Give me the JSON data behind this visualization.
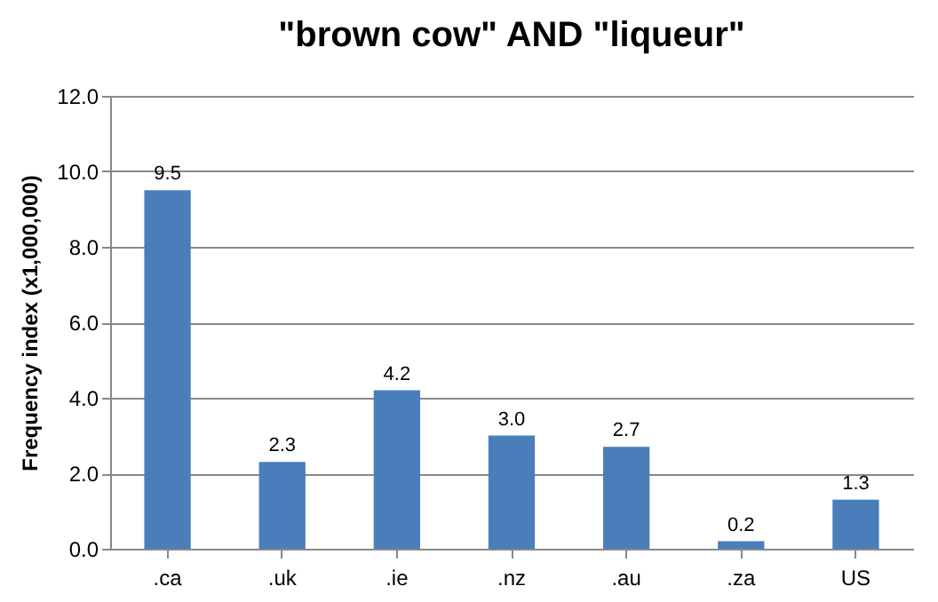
{
  "chart_data": {
    "type": "bar",
    "title": "\"brown cow\" AND \"liqueur\"",
    "ylabel": "Frequency index (x1,000,000)",
    "categories": [
      ".ca",
      ".uk",
      ".ie",
      ".nz",
      ".au",
      ".za",
      "US"
    ],
    "values": [
      9.5,
      2.3,
      4.2,
      3.0,
      2.7,
      0.2,
      1.3
    ],
    "value_labels": [
      "9.5",
      "2.3",
      "4.2",
      "3.0",
      "2.7",
      "0.2",
      "1.3"
    ],
    "color": "#4a7ebb",
    "ylim": [
      0,
      12
    ],
    "yticks": [
      {
        "value": 0,
        "label": "0.0"
      },
      {
        "value": 2,
        "label": "2.0"
      },
      {
        "value": 4,
        "label": "4.0"
      },
      {
        "value": 6,
        "label": "6.0"
      },
      {
        "value": 8,
        "label": "8.0"
      },
      {
        "value": 10,
        "label": "10.0"
      },
      {
        "value": 12,
        "label": "12.0"
      }
    ],
    "grid": "y"
  }
}
